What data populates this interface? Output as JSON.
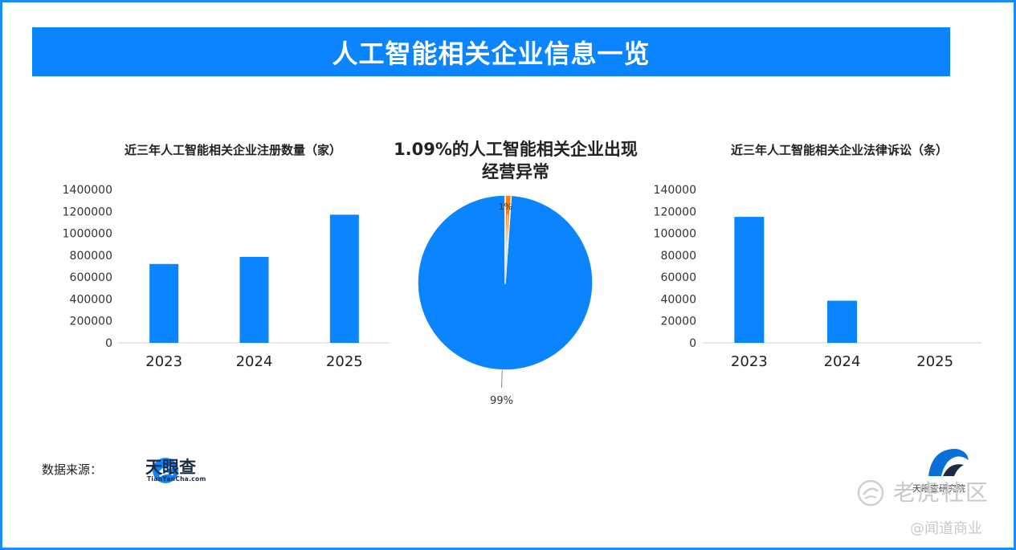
{
  "header": {
    "title": "人工智能相关企业信息一览"
  },
  "footer": {
    "source_label": "数据来源：",
    "source_name": "天眼查",
    "source_sub": "TianYanCha.com",
    "brand_name": "天眼查研究院",
    "watermark_main": "老虎社区",
    "watermark_sub": "@闻道商业"
  },
  "colors": {
    "primary": "#0a85ff",
    "accent": "#ff7f0e",
    "frame": "#1a8cff"
  },
  "chart_data": [
    {
      "type": "bar",
      "title": "近三年人工智能相关企业注册数量（家）",
      "categories": [
        "2023",
        "2024",
        "2025"
      ],
      "values": [
        720000,
        785000,
        1170000
      ],
      "ylim": [
        0,
        1400000
      ],
      "yticks": [
        0,
        200000,
        400000,
        600000,
        800000,
        1000000,
        1200000,
        1400000
      ],
      "grid": false,
      "color": "#0a85ff"
    },
    {
      "type": "pie",
      "title": "1.09%的人工智能相关企业出现经营异常",
      "slices": [
        {
          "value": 98.91,
          "label": "99%",
          "color": "#0a85ff"
        },
        {
          "value": 1.09,
          "label": "1%",
          "color": "#ff7f0e"
        }
      ]
    },
    {
      "type": "bar",
      "title": "近三年人工智能相关企业法律诉讼（条）",
      "categories": [
        "2023",
        "2024",
        "2025"
      ],
      "values": [
        115000,
        38500,
        0
      ],
      "ylim": [
        0,
        140000
      ],
      "yticks": [
        0,
        20000,
        40000,
        60000,
        80000,
        100000,
        120000,
        140000
      ],
      "grid": false,
      "color": "#0a85ff"
    }
  ]
}
